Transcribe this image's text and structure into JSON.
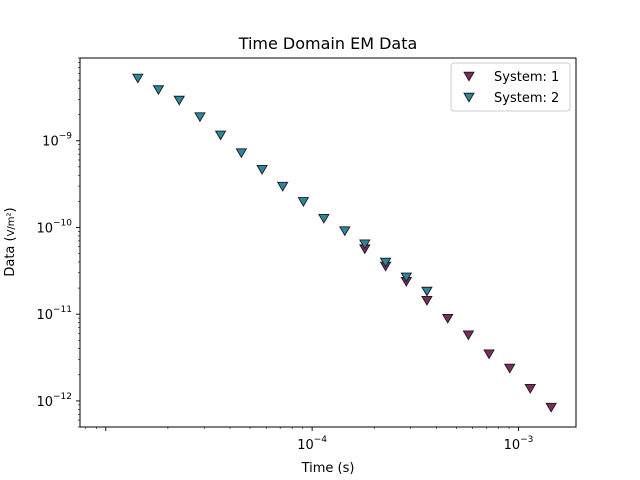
{
  "chart_data": {
    "type": "scatter",
    "title": "Time Domain EM Data",
    "xlabel": "Time (s)",
    "ylabel": "Data (V/m²)",
    "xscale": "log",
    "yscale": "log",
    "xlim": [
      7.5e-06,
      0.0019
    ],
    "ylim": [
      5e-13,
      9e-09
    ],
    "xticks": [
      {
        "value": 0.0001,
        "base": "10",
        "exp": "−4"
      },
      {
        "value": 0.001,
        "base": "10",
        "exp": "−3"
      }
    ],
    "yticks": [
      {
        "value": 1e-12,
        "base": "10",
        "exp": "−12"
      },
      {
        "value": 1e-11,
        "base": "10",
        "exp": "−11"
      },
      {
        "value": 1e-10,
        "base": "10",
        "exp": "−10"
      },
      {
        "value": 1e-09,
        "base": "10",
        "exp": "−9"
      }
    ],
    "grid": false,
    "legend_position": "top-right",
    "marker": "triangle-down",
    "series": [
      {
        "name": "System: 1",
        "color": "#7b2d62",
        "x": [
          0.00018,
          0.000227,
          0.000286,
          0.00036,
          0.000454,
          0.000572,
          0.00072,
          0.000907,
          0.00114,
          0.00144
        ],
        "y": [
          5.7e-11,
          3.6e-11,
          2.4e-11,
          1.45e-11,
          9e-12,
          5.8e-12,
          3.5e-12,
          2.4e-12,
          1.4e-12,
          8.5e-13
        ]
      },
      {
        "name": "System: 2",
        "color": "#2b86a0",
        "x": [
          1.43e-05,
          1.8e-05,
          2.27e-05,
          2.86e-05,
          3.6e-05,
          4.54e-05,
          5.72e-05,
          7.2e-05,
          9.07e-05,
          0.000114,
          0.000144,
          0.00018,
          0.000227,
          0.000286,
          0.00036
        ],
        "y": [
          5.3e-09,
          3.9e-09,
          2.95e-09,
          1.9e-09,
          1.17e-09,
          7.3e-10,
          4.7e-10,
          3e-10,
          2e-10,
          1.28e-10,
          9.2e-11,
          6.5e-11,
          4e-11,
          2.7e-11,
          1.85e-11
        ]
      }
    ]
  }
}
